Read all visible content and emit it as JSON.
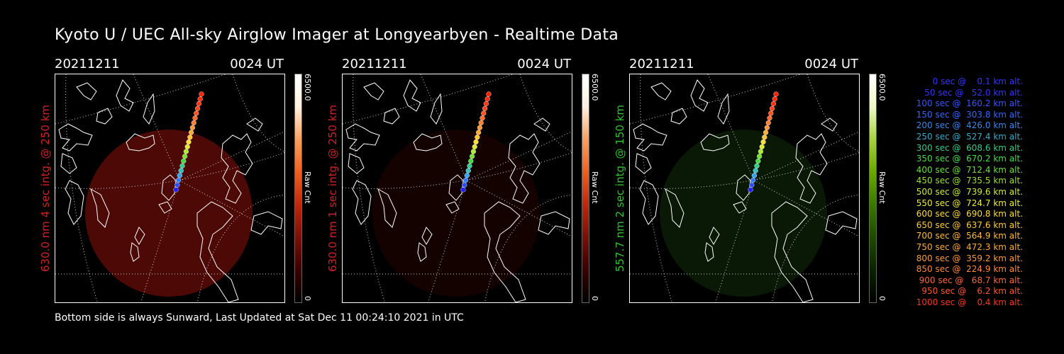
{
  "title": "Kyoto U / UEC All-sky Airglow Imager at Longyearbyen - Realtime Data",
  "footer": "Bottom side is always Sunward, Last Updated at Sat Dec 11 00:24:10 2021 in UTC",
  "panels": [
    {
      "date": "20211211",
      "time": "0024 UT",
      "label": "630.0 nm 4 sec intg. @ 250 km",
      "label_color": "#d22020",
      "cbar_max": "6500.0",
      "cbar_min": "0",
      "cbar_unit": "Raw Cnt",
      "glow_color": "#5a0a06",
      "glow_opacity": 0.85,
      "cbar_colors": [
        "#000000",
        "#3a0000",
        "#7a1008",
        "#c0280c",
        "#ee6020",
        "#f8a060",
        "#fff0e0",
        "#ffffff"
      ]
    },
    {
      "date": "20211211",
      "time": "0024 UT",
      "label": "630.0 nm 1 sec intg. @ 250 km",
      "label_color": "#d22020",
      "cbar_max": "6500.0",
      "cbar_min": "0",
      "cbar_unit": "Raw Cnt",
      "glow_color": "#3a0604",
      "glow_opacity": 0.35,
      "cbar_colors": [
        "#000000",
        "#3a0000",
        "#7a1008",
        "#c0280c",
        "#ee6020",
        "#f8a060",
        "#fff0e0",
        "#ffffff"
      ]
    },
    {
      "date": "20211211",
      "time": "0024 UT",
      "label": "557.7 nm 2 sec intg. @ 150 km",
      "label_color": "#30c030",
      "cbar_max": "6500.0",
      "cbar_min": "0",
      "cbar_unit": "Raw Cnt",
      "glow_color": "#0f2a0a",
      "glow_opacity": 0.6,
      "cbar_colors": [
        "#000000",
        "#0a2200",
        "#1f4a00",
        "#3a7800",
        "#6aa800",
        "#a8d040",
        "#eef8c8",
        "#ffffff"
      ]
    }
  ],
  "legend": [
    {
      "text": "   0 sec @    0.1 km alt.",
      "color": "#3333ff"
    },
    {
      "text": "  50 sec @   52.0 km alt.",
      "color": "#3333ff"
    },
    {
      "text": " 100 sec @  160.2 km alt.",
      "color": "#3355ff"
    },
    {
      "text": " 150 sec @  303.8 km alt.",
      "color": "#3366ff"
    },
    {
      "text": " 200 sec @  426.0 km alt.",
      "color": "#3388ee"
    },
    {
      "text": " 250 sec @  527.4 km alt.",
      "color": "#33aacc"
    },
    {
      "text": " 300 sec @  608.6 km alt.",
      "color": "#33cc88"
    },
    {
      "text": " 350 sec @  670.2 km alt.",
      "color": "#44dd44"
    },
    {
      "text": " 400 sec @  712.4 km alt.",
      "color": "#66e033"
    },
    {
      "text": " 450 sec @  735.5 km alt.",
      "color": "#99e033"
    },
    {
      "text": " 500 sec @  739.6 km alt.",
      "color": "#ccee33"
    },
    {
      "text": " 550 sec @  724.7 km alt.",
      "color": "#eeee33"
    },
    {
      "text": " 600 sec @  690.8 km alt.",
      "color": "#ffdd33"
    },
    {
      "text": " 650 sec @  637.6 km alt.",
      "color": "#ffcc33"
    },
    {
      "text": " 700 sec @  564.9 km alt.",
      "color": "#ffbb33"
    },
    {
      "text": " 750 sec @  472.3 km alt.",
      "color": "#ffaa33"
    },
    {
      "text": " 800 sec @  359.2 km alt.",
      "color": "#ff9933"
    },
    {
      "text": " 850 sec @  224.9 km alt.",
      "color": "#ff8833"
    },
    {
      "text": " 900 sec @   68.7 km alt.",
      "color": "#ff6633"
    },
    {
      "text": " 950 sec @    6.2 km alt.",
      "color": "#ff5522"
    },
    {
      "text": "1000 sec @    0.4 km alt.",
      "color": "#ff3311"
    }
  ]
}
